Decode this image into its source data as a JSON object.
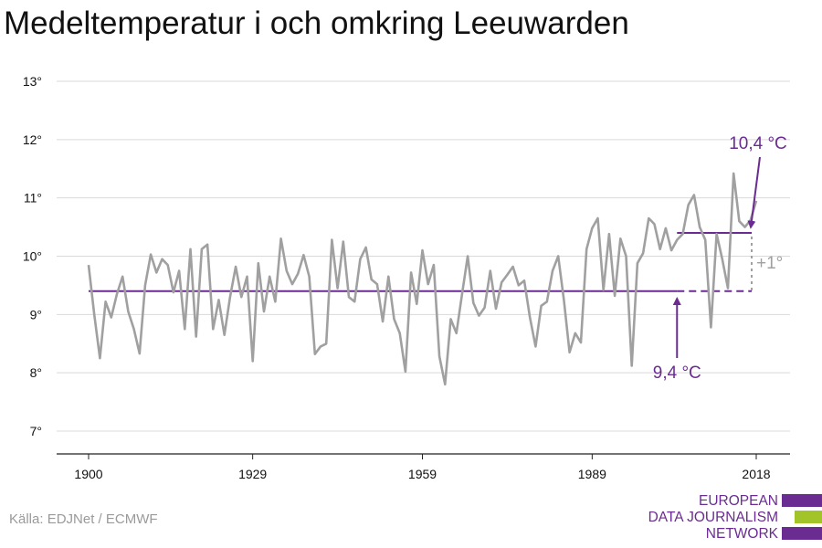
{
  "title": "Medeltemperatur i och omkring Leeuwarden",
  "source": "Källa: EDJNet / ECMWF",
  "logo": {
    "lines": [
      "EUROPEAN",
      "DATA JOURNALISM",
      "NETWORK"
    ],
    "colors": [
      "#6a2c91",
      "#a2c429",
      "#6a2c91"
    ]
  },
  "colors": {
    "series": "#a0a0a0",
    "accent": "#6a2c91",
    "delta": "#a0a0a0",
    "grid": "#d9d9d9"
  },
  "chart_data": {
    "type": "line",
    "xlim": [
      1900,
      2018
    ],
    "ylim": [
      7,
      13
    ],
    "x_ticks": [
      1900,
      1929,
      1959,
      1989,
      2018
    ],
    "y_ticks": [
      7,
      8,
      9,
      10,
      11,
      12,
      13
    ],
    "y_tick_labels": [
      "7°",
      "8°",
      "9°",
      "10°",
      "11°",
      "12°",
      "13°"
    ],
    "grid": "horizontal",
    "series": [
      {
        "x": [
          1900,
          1901,
          1902,
          1903,
          1904,
          1905,
          1906,
          1907,
          1908,
          1909,
          1910,
          1911,
          1912,
          1913,
          1914,
          1915,
          1916,
          1917,
          1918,
          1919,
          1920,
          1921,
          1922,
          1923,
          1924,
          1925,
          1926,
          1927,
          1928,
          1929,
          1930,
          1931,
          1932,
          1933,
          1934,
          1935,
          1936,
          1937,
          1938,
          1939,
          1940,
          1941,
          1942,
          1943,
          1944,
          1945,
          1946,
          1947,
          1948,
          1949,
          1950,
          1951,
          1952,
          1953,
          1954,
          1955,
          1956,
          1957,
          1958,
          1959,
          1960,
          1961,
          1962,
          1963,
          1964,
          1965,
          1966,
          1967,
          1968,
          1969,
          1970,
          1971,
          1972,
          1973,
          1974,
          1975,
          1976,
          1977,
          1978,
          1979,
          1980,
          1981,
          1982,
          1983,
          1984,
          1985,
          1986,
          1987,
          1988,
          1989,
          1990,
          1991,
          1992,
          1993,
          1994,
          1995,
          1996,
          1997,
          1998,
          1999,
          2000,
          2001,
          2002,
          2003,
          2004,
          2005,
          2006,
          2007,
          2008,
          2009,
          2010,
          2011,
          2012,
          2013,
          2014,
          2015,
          2016,
          2017,
          2018
        ],
        "values": [
          9.85,
          9.0,
          8.25,
          9.22,
          8.95,
          9.35,
          9.65,
          9.05,
          8.75,
          8.33,
          9.5,
          10.03,
          9.72,
          9.95,
          9.85,
          9.38,
          9.75,
          8.75,
          10.12,
          8.62,
          10.12,
          10.2,
          8.75,
          9.25,
          8.65,
          9.3,
          9.82,
          9.3,
          9.65,
          8.2,
          9.88,
          9.05,
          9.65,
          9.22,
          10.3,
          9.75,
          9.52,
          9.7,
          10.02,
          9.65,
          8.32,
          8.45,
          8.5,
          10.28,
          9.45,
          10.25,
          9.3,
          9.22,
          9.95,
          10.15,
          9.6,
          9.52,
          8.88,
          9.65,
          8.92,
          8.68,
          8.02,
          9.72,
          9.18,
          10.1,
          9.52,
          9.85,
          8.28,
          7.8,
          8.92,
          8.68,
          9.35,
          10.0,
          9.2,
          8.98,
          9.12,
          9.75,
          9.1,
          9.55,
          9.68,
          9.82,
          9.5,
          9.58,
          8.95,
          8.45,
          9.15,
          9.22,
          9.75,
          10.0,
          9.25,
          8.35,
          8.68,
          8.52,
          10.12,
          10.48,
          10.65,
          9.42,
          10.38,
          9.32,
          10.3,
          10.0,
          8.12,
          9.88,
          10.05,
          10.65,
          10.55,
          10.12,
          10.48,
          10.1,
          10.28,
          10.38,
          10.88,
          11.05,
          10.5,
          10.28,
          8.78,
          10.38,
          9.95,
          9.45,
          11.42,
          10.6,
          10.5,
          10.62,
          10.95
        ]
      }
    ],
    "baseline": {
      "value": 9.4,
      "label": "9,4 °C",
      "solid_until": 2004
    },
    "recent": {
      "value": 10.4,
      "label": "10,4 °C",
      "from": 2004
    },
    "delta_label": "+1°"
  }
}
